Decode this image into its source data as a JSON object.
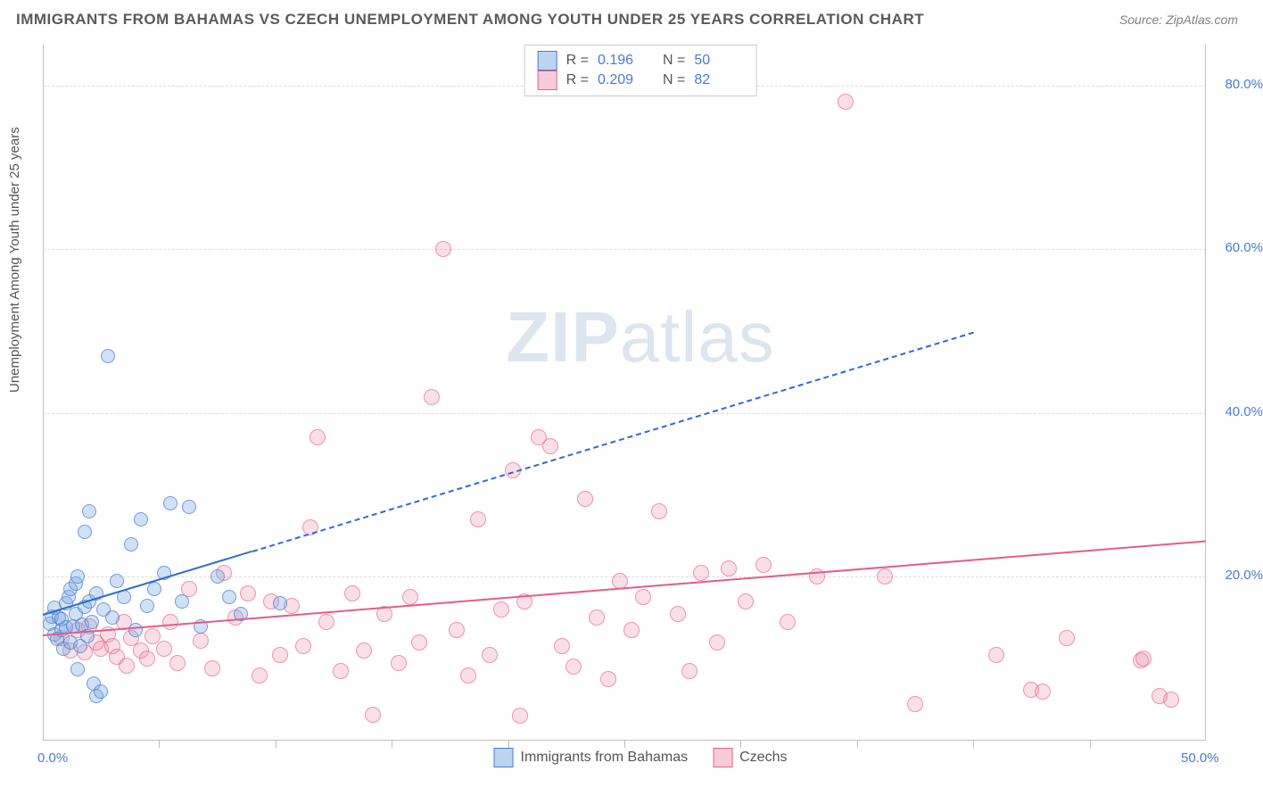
{
  "header": {
    "title": "IMMIGRANTS FROM BAHAMAS VS CZECH UNEMPLOYMENT AMONG YOUTH UNDER 25 YEARS CORRELATION CHART",
    "source": "Source: ZipAtlas.com"
  },
  "watermark": {
    "prefix": "ZIP",
    "suffix": "atlas"
  },
  "chart": {
    "type": "scatter",
    "background_color": "#ffffff",
    "grid_color": "#dcdcdc",
    "axis_color": "#bfbfbf",
    "label_color": "#4a7bd0",
    "y_axis_label": "Unemployment Among Youth under 25 years",
    "y_axis_label_color": "#555555",
    "xlim": [
      0,
      50
    ],
    "ylim": [
      0,
      85
    ],
    "x_ticks_major": [
      0,
      50
    ],
    "x_ticks_minor": [
      5,
      10,
      15,
      20,
      25,
      30,
      35,
      40,
      45
    ],
    "y_ticks": [
      20,
      40,
      60,
      80
    ],
    "x_tick_labels": {
      "0": "0.0%",
      "50": "50.0%"
    },
    "y_tick_labels": {
      "20": "20.0%",
      "40": "40.0%",
      "60": "60.0%",
      "80": "80.0%"
    },
    "legend_top": [
      {
        "swatch_fill": "rgba(121,169,225,0.5)",
        "swatch_border": "#4a7bd0",
        "r_label": "R =",
        "r_value": "0.196",
        "n_label": "N =",
        "n_value": "50"
      },
      {
        "swatch_fill": "rgba(236,128,158,0.4)",
        "swatch_border": "#e26280",
        "r_label": "R =",
        "r_value": "0.209",
        "n_label": "N =",
        "n_value": "82"
      }
    ],
    "legend_bottom": [
      {
        "swatch_fill": "rgba(121,169,225,0.5)",
        "swatch_border": "#4a7bd0",
        "label": "Immigrants from Bahamas"
      },
      {
        "swatch_fill": "rgba(236,128,158,0.4)",
        "swatch_border": "#e26280",
        "label": "Czechs"
      }
    ],
    "series_blue": {
      "color_fill": "rgba(121,169,225,0.35)",
      "color_border": "rgba(74,123,208,0.7)",
      "marker_size": 16,
      "trend": {
        "color": "#2f6bd0",
        "width": 2.5,
        "solid_from_x": 0,
        "solid_to_x": 9,
        "x1": 0,
        "y1": 15.5,
        "x2": 40,
        "y2": 50
      },
      "points": [
        [
          0.3,
          14.3
        ],
        [
          0.4,
          15.2
        ],
        [
          0.5,
          13.0
        ],
        [
          0.5,
          16.2
        ],
        [
          0.6,
          12.4
        ],
        [
          0.7,
          15.0
        ],
        [
          0.8,
          13.5
        ],
        [
          0.8,
          14.8
        ],
        [
          0.9,
          11.2
        ],
        [
          1.0,
          16.8
        ],
        [
          1.0,
          13.8
        ],
        [
          1.1,
          17.5
        ],
        [
          1.2,
          12.0
        ],
        [
          1.2,
          18.5
        ],
        [
          1.3,
          14.0
        ],
        [
          1.4,
          15.5
        ],
        [
          1.4,
          19.2
        ],
        [
          1.5,
          8.7
        ],
        [
          1.5,
          20.0
        ],
        [
          1.6,
          11.5
        ],
        [
          1.7,
          14.2
        ],
        [
          1.8,
          16.3
        ],
        [
          1.8,
          25.5
        ],
        [
          1.9,
          12.8
        ],
        [
          2.0,
          17.0
        ],
        [
          2.0,
          28.0
        ],
        [
          2.1,
          14.5
        ],
        [
          2.2,
          7.0
        ],
        [
          2.3,
          18.0
        ],
        [
          2.3,
          5.5
        ],
        [
          2.5,
          6.0
        ],
        [
          2.6,
          16.0
        ],
        [
          2.8,
          47.0
        ],
        [
          3.0,
          15.0
        ],
        [
          3.2,
          19.5
        ],
        [
          3.5,
          17.5
        ],
        [
          3.8,
          24.0
        ],
        [
          4.0,
          13.5
        ],
        [
          4.2,
          27.0
        ],
        [
          4.5,
          16.5
        ],
        [
          4.8,
          18.5
        ],
        [
          5.2,
          20.5
        ],
        [
          5.5,
          29.0
        ],
        [
          6.0,
          17.0
        ],
        [
          6.3,
          28.5
        ],
        [
          6.8,
          14.0
        ],
        [
          7.5,
          20.0
        ],
        [
          8.0,
          17.5
        ],
        [
          8.5,
          15.5
        ],
        [
          10.2,
          16.8
        ]
      ]
    },
    "series_pink": {
      "color_fill": "rgba(236,128,158,0.25)",
      "color_border": "rgba(226,98,128,0.6)",
      "marker_size": 18,
      "trend": {
        "color": "#e85a8a",
        "width": 2.5,
        "x1": 0,
        "y1": 13.0,
        "x2": 50,
        "y2": 24.5
      },
      "points": [
        [
          0.8,
          12.5
        ],
        [
          1.2,
          11.0
        ],
        [
          1.5,
          13.5
        ],
        [
          1.8,
          10.8
        ],
        [
          2.0,
          14.0
        ],
        [
          2.3,
          12.0
        ],
        [
          2.5,
          11.2
        ],
        [
          2.8,
          13.0
        ],
        [
          3.0,
          11.5
        ],
        [
          3.2,
          10.2
        ],
        [
          3.5,
          14.5
        ],
        [
          3.6,
          9.2
        ],
        [
          3.8,
          12.5
        ],
        [
          4.2,
          11.0
        ],
        [
          4.5,
          10.0
        ],
        [
          4.7,
          12.8
        ],
        [
          5.2,
          11.2
        ],
        [
          5.5,
          14.5
        ],
        [
          5.8,
          9.5
        ],
        [
          6.3,
          18.5
        ],
        [
          6.8,
          12.2
        ],
        [
          7.3,
          8.8
        ],
        [
          7.8,
          20.5
        ],
        [
          8.3,
          15.0
        ],
        [
          8.8,
          18.0
        ],
        [
          9.3,
          8.0
        ],
        [
          9.8,
          17.0
        ],
        [
          10.2,
          10.5
        ],
        [
          10.7,
          16.5
        ],
        [
          11.2,
          11.5
        ],
        [
          11.5,
          26.0
        ],
        [
          11.8,
          37.0
        ],
        [
          12.2,
          14.5
        ],
        [
          12.8,
          8.5
        ],
        [
          13.3,
          18.0
        ],
        [
          13.8,
          11.0
        ],
        [
          14.2,
          3.2
        ],
        [
          14.7,
          15.5
        ],
        [
          15.3,
          9.5
        ],
        [
          15.8,
          17.5
        ],
        [
          16.2,
          12.0
        ],
        [
          16.7,
          42.0
        ],
        [
          17.2,
          60.0
        ],
        [
          17.8,
          13.5
        ],
        [
          18.3,
          8.0
        ],
        [
          18.7,
          27.0
        ],
        [
          19.2,
          10.5
        ],
        [
          19.7,
          16.0
        ],
        [
          20.2,
          33.0
        ],
        [
          20.5,
          3.0
        ],
        [
          20.7,
          17.0
        ],
        [
          21.3,
          37.0
        ],
        [
          21.8,
          36.0
        ],
        [
          22.3,
          11.5
        ],
        [
          22.8,
          9.0
        ],
        [
          23.3,
          29.5
        ],
        [
          23.8,
          15.0
        ],
        [
          24.3,
          7.5
        ],
        [
          24.8,
          19.5
        ],
        [
          25.3,
          13.5
        ],
        [
          25.8,
          17.5
        ],
        [
          26.5,
          28.0
        ],
        [
          27.3,
          15.5
        ],
        [
          27.8,
          8.5
        ],
        [
          28.3,
          20.5
        ],
        [
          29.0,
          12.0
        ],
        [
          29.5,
          21.0
        ],
        [
          30.2,
          17.0
        ],
        [
          31.0,
          21.5
        ],
        [
          32.0,
          14.5
        ],
        [
          33.3,
          20.0
        ],
        [
          34.5,
          78.0
        ],
        [
          36.2,
          20.0
        ],
        [
          37.5,
          4.5
        ],
        [
          41.0,
          10.5
        ],
        [
          42.5,
          6.2
        ],
        [
          43.0,
          6.0
        ],
        [
          44.0,
          12.5
        ],
        [
          47.2,
          9.8
        ],
        [
          47.3,
          10.0
        ],
        [
          48.0,
          5.5
        ],
        [
          48.5,
          5.0
        ]
      ]
    }
  }
}
